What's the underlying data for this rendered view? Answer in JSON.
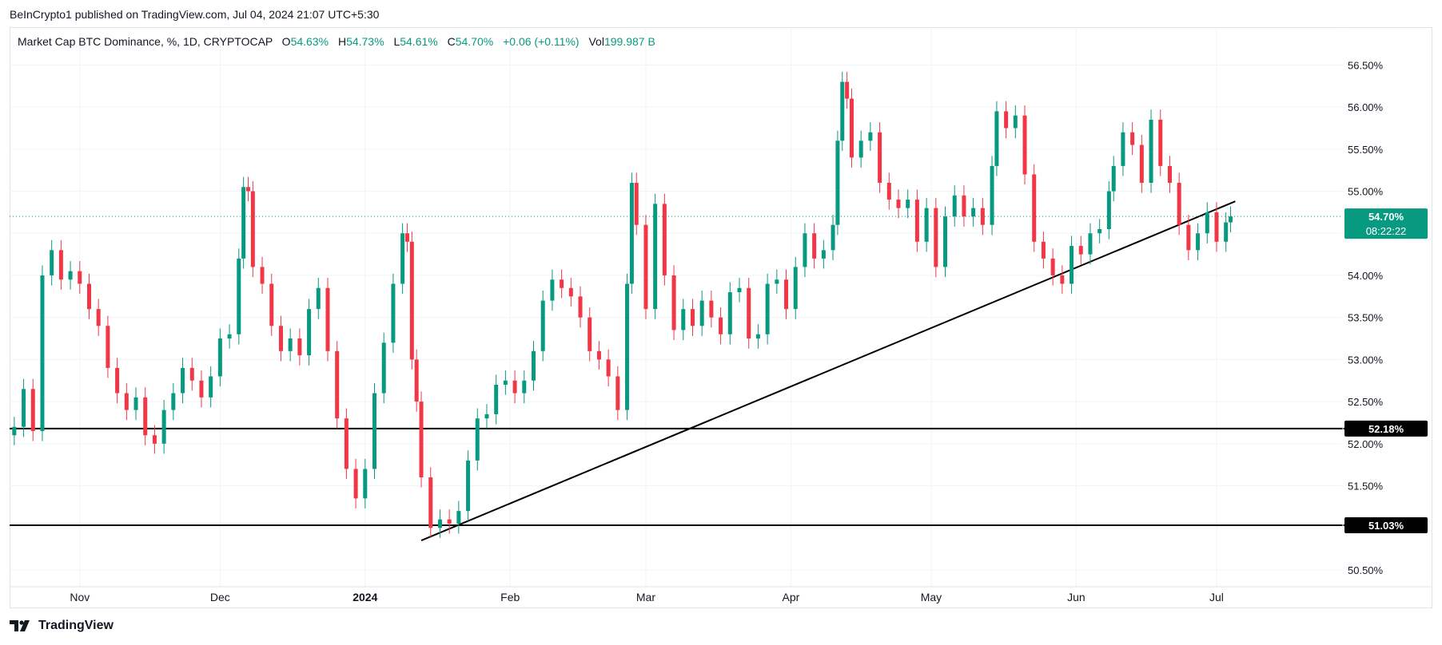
{
  "publisher_line": "BeInCrypto1 published on TradingView.com, Jul 04, 2024 21:07 UTC+5:30",
  "legend": {
    "symbol": "Market Cap BTC Dominance, %, 1D, CRYPTOCAP",
    "o_label": "O",
    "o_value": "54.63%",
    "h_label": "H",
    "h_value": "54.73%",
    "l_label": "L",
    "l_value": "54.61%",
    "c_label": "C",
    "c_value": "54.70%",
    "change": "+0.06 (+0.11%)",
    "vol_label": "Vol",
    "vol_value": "199.987 B"
  },
  "footer_brand": "TradingView",
  "colors": {
    "up": "#089981",
    "down": "#f23645",
    "grid": "#f0f3fa",
    "line": "#000000",
    "price_tag": "#089981"
  },
  "icons": {
    "brand": "tradingview-logo-icon"
  },
  "chart_data": {
    "type": "candlestick",
    "title": "Market Cap BTC Dominance, %, 1D, CRYPTOCAP",
    "y_unit": "%",
    "ylim": [
      50.3,
      56.95
    ],
    "y_ticks": [
      "50.50%",
      "51.00%",
      "51.50%",
      "52.00%",
      "52.50%",
      "53.00%",
      "53.50%",
      "54.00%",
      "54.50%",
      "55.00%",
      "55.50%",
      "56.00%",
      "56.50%"
    ],
    "x_labels": [
      {
        "label": "Nov",
        "date": "2023-11-01"
      },
      {
        "label": "Dec",
        "date": "2023-12-01"
      },
      {
        "label": "2024",
        "date": "2024-01-01",
        "bold": true
      },
      {
        "label": "Feb",
        "date": "2024-02-01"
      },
      {
        "label": "Mar",
        "date": "2024-03-01"
      },
      {
        "label": "Apr",
        "date": "2024-04-01"
      },
      {
        "label": "May",
        "date": "2024-05-01"
      },
      {
        "label": "Jun",
        "date": "2024-06-01"
      },
      {
        "label": "Jul",
        "date": "2024-07-01"
      }
    ],
    "x_range": [
      "2023-10-17",
      "2024-07-28"
    ],
    "grid": true,
    "closes": [
      {
        "date": "2023-10-18",
        "close": 52.2
      },
      {
        "date": "2023-10-20",
        "close": 52.65
      },
      {
        "date": "2023-10-22",
        "close": 52.15
      },
      {
        "date": "2023-10-24",
        "close": 54.0
      },
      {
        "date": "2023-10-26",
        "close": 54.3
      },
      {
        "date": "2023-10-28",
        "close": 53.95
      },
      {
        "date": "2023-10-30",
        "close": 54.05
      },
      {
        "date": "2023-11-01",
        "close": 53.9
      },
      {
        "date": "2023-11-03",
        "close": 53.6
      },
      {
        "date": "2023-11-05",
        "close": 53.4
      },
      {
        "date": "2023-11-07",
        "close": 52.9
      },
      {
        "date": "2023-11-09",
        "close": 52.6
      },
      {
        "date": "2023-11-11",
        "close": 52.4
      },
      {
        "date": "2023-11-13",
        "close": 52.55
      },
      {
        "date": "2023-11-15",
        "close": 52.1
      },
      {
        "date": "2023-11-17",
        "close": 52.0
      },
      {
        "date": "2023-11-19",
        "close": 52.4
      },
      {
        "date": "2023-11-21",
        "close": 52.6
      },
      {
        "date": "2023-11-23",
        "close": 52.9
      },
      {
        "date": "2023-11-25",
        "close": 52.75
      },
      {
        "date": "2023-11-27",
        "close": 52.55
      },
      {
        "date": "2023-11-29",
        "close": 52.8
      },
      {
        "date": "2023-12-01",
        "close": 53.25
      },
      {
        "date": "2023-12-03",
        "close": 53.3
      },
      {
        "date": "2023-12-05",
        "close": 54.2
      },
      {
        "date": "2023-12-06",
        "close": 55.05
      },
      {
        "date": "2023-12-07",
        "close": 55.0
      },
      {
        "date": "2023-12-08",
        "close": 54.1
      },
      {
        "date": "2023-12-10",
        "close": 53.9
      },
      {
        "date": "2023-12-12",
        "close": 53.4
      },
      {
        "date": "2023-12-14",
        "close": 53.1
      },
      {
        "date": "2023-12-16",
        "close": 53.25
      },
      {
        "date": "2023-12-18",
        "close": 53.05
      },
      {
        "date": "2023-12-20",
        "close": 53.6
      },
      {
        "date": "2023-12-22",
        "close": 53.85
      },
      {
        "date": "2023-12-24",
        "close": 53.1
      },
      {
        "date": "2023-12-26",
        "close": 52.3
      },
      {
        "date": "2023-12-28",
        "close": 51.7
      },
      {
        "date": "2023-12-30",
        "close": 51.35
      },
      {
        "date": "2024-01-01",
        "close": 51.7
      },
      {
        "date": "2024-01-03",
        "close": 52.6
      },
      {
        "date": "2024-01-05",
        "close": 53.2
      },
      {
        "date": "2024-01-07",
        "close": 53.9
      },
      {
        "date": "2024-01-09",
        "close": 54.5
      },
      {
        "date": "2024-01-10",
        "close": 54.4
      },
      {
        "date": "2024-01-11",
        "close": 53.0
      },
      {
        "date": "2024-01-12",
        "close": 52.5
      },
      {
        "date": "2024-01-13",
        "close": 51.6
      },
      {
        "date": "2024-01-15",
        "close": 51.0
      },
      {
        "date": "2024-01-17",
        "close": 51.1
      },
      {
        "date": "2024-01-19",
        "close": 51.05
      },
      {
        "date": "2024-01-21",
        "close": 51.2
      },
      {
        "date": "2024-01-23",
        "close": 51.8
      },
      {
        "date": "2024-01-25",
        "close": 52.3
      },
      {
        "date": "2024-01-27",
        "close": 52.35
      },
      {
        "date": "2024-01-29",
        "close": 52.7
      },
      {
        "date": "2024-01-31",
        "close": 52.75
      },
      {
        "date": "2024-02-02",
        "close": 52.6
      },
      {
        "date": "2024-02-04",
        "close": 52.75
      },
      {
        "date": "2024-02-06",
        "close": 53.1
      },
      {
        "date": "2024-02-08",
        "close": 53.7
      },
      {
        "date": "2024-02-10",
        "close": 53.95
      },
      {
        "date": "2024-02-12",
        "close": 53.85
      },
      {
        "date": "2024-02-14",
        "close": 53.75
      },
      {
        "date": "2024-02-16",
        "close": 53.5
      },
      {
        "date": "2024-02-18",
        "close": 53.1
      },
      {
        "date": "2024-02-20",
        "close": 53.0
      },
      {
        "date": "2024-02-22",
        "close": 52.8
      },
      {
        "date": "2024-02-24",
        "close": 52.4
      },
      {
        "date": "2024-02-26",
        "close": 53.9
      },
      {
        "date": "2024-02-27",
        "close": 55.1
      },
      {
        "date": "2024-02-28",
        "close": 54.6
      },
      {
        "date": "2024-03-01",
        "close": 53.6
      },
      {
        "date": "2024-03-03",
        "close": 54.85
      },
      {
        "date": "2024-03-05",
        "close": 54.0
      },
      {
        "date": "2024-03-07",
        "close": 53.35
      },
      {
        "date": "2024-03-09",
        "close": 53.6
      },
      {
        "date": "2024-03-11",
        "close": 53.4
      },
      {
        "date": "2024-03-13",
        "close": 53.7
      },
      {
        "date": "2024-03-15",
        "close": 53.5
      },
      {
        "date": "2024-03-17",
        "close": 53.3
      },
      {
        "date": "2024-03-19",
        "close": 53.8
      },
      {
        "date": "2024-03-21",
        "close": 53.85
      },
      {
        "date": "2024-03-23",
        "close": 53.25
      },
      {
        "date": "2024-03-25",
        "close": 53.3
      },
      {
        "date": "2024-03-27",
        "close": 53.9
      },
      {
        "date": "2024-03-29",
        "close": 53.95
      },
      {
        "date": "2024-03-31",
        "close": 53.6
      },
      {
        "date": "2024-04-02",
        "close": 54.1
      },
      {
        "date": "2024-04-04",
        "close": 54.5
      },
      {
        "date": "2024-04-06",
        "close": 54.2
      },
      {
        "date": "2024-04-08",
        "close": 54.3
      },
      {
        "date": "2024-04-10",
        "close": 54.6
      },
      {
        "date": "2024-04-11",
        "close": 55.6
      },
      {
        "date": "2024-04-12",
        "close": 56.3
      },
      {
        "date": "2024-04-13",
        "close": 56.1
      },
      {
        "date": "2024-04-14",
        "close": 55.4
      },
      {
        "date": "2024-04-16",
        "close": 55.6
      },
      {
        "date": "2024-04-18",
        "close": 55.7
      },
      {
        "date": "2024-04-20",
        "close": 55.1
      },
      {
        "date": "2024-04-22",
        "close": 54.9
      },
      {
        "date": "2024-04-24",
        "close": 54.8
      },
      {
        "date": "2024-04-26",
        "close": 54.9
      },
      {
        "date": "2024-04-28",
        "close": 54.4
      },
      {
        "date": "2024-04-30",
        "close": 54.8
      },
      {
        "date": "2024-05-02",
        "close": 54.1
      },
      {
        "date": "2024-05-04",
        "close": 54.7
      },
      {
        "date": "2024-05-06",
        "close": 54.95
      },
      {
        "date": "2024-05-08",
        "close": 54.7
      },
      {
        "date": "2024-05-10",
        "close": 54.8
      },
      {
        "date": "2024-05-12",
        "close": 54.6
      },
      {
        "date": "2024-05-14",
        "close": 55.3
      },
      {
        "date": "2024-05-15",
        "close": 55.95
      },
      {
        "date": "2024-05-17",
        "close": 55.75
      },
      {
        "date": "2024-05-19",
        "close": 55.9
      },
      {
        "date": "2024-05-21",
        "close": 55.2
      },
      {
        "date": "2024-05-23",
        "close": 54.4
      },
      {
        "date": "2024-05-25",
        "close": 54.2
      },
      {
        "date": "2024-05-27",
        "close": 54.0
      },
      {
        "date": "2024-05-29",
        "close": 53.9
      },
      {
        "date": "2024-05-31",
        "close": 54.35
      },
      {
        "date": "2024-06-02",
        "close": 54.25
      },
      {
        "date": "2024-06-04",
        "close": 54.5
      },
      {
        "date": "2024-06-06",
        "close": 54.55
      },
      {
        "date": "2024-06-08",
        "close": 55.0
      },
      {
        "date": "2024-06-09",
        "close": 55.3
      },
      {
        "date": "2024-06-11",
        "close": 55.7
      },
      {
        "date": "2024-06-13",
        "close": 55.55
      },
      {
        "date": "2024-06-15",
        "close": 55.1
      },
      {
        "date": "2024-06-17",
        "close": 55.85
      },
      {
        "date": "2024-06-19",
        "close": 55.3
      },
      {
        "date": "2024-06-21",
        "close": 55.1
      },
      {
        "date": "2024-06-23",
        "close": 54.6
      },
      {
        "date": "2024-06-25",
        "close": 54.3
      },
      {
        "date": "2024-06-27",
        "close": 54.5
      },
      {
        "date": "2024-06-29",
        "close": 54.75
      },
      {
        "date": "2024-07-01",
        "close": 54.4
      },
      {
        "date": "2024-07-03",
        "close": 54.63
      },
      {
        "date": "2024-07-04",
        "close": 54.7
      }
    ],
    "last_price_label": "54.70%",
    "last_price": 54.7,
    "countdown_label": "08:22:22",
    "horizontal_levels": [
      {
        "value": 52.18,
        "label": "52.18%"
      },
      {
        "value": 51.03,
        "label": "51.03%"
      }
    ],
    "trendline": {
      "from": {
        "date": "2024-01-13",
        "value": 50.85
      },
      "to": {
        "date": "2024-07-05",
        "value": 54.88
      }
    }
  }
}
